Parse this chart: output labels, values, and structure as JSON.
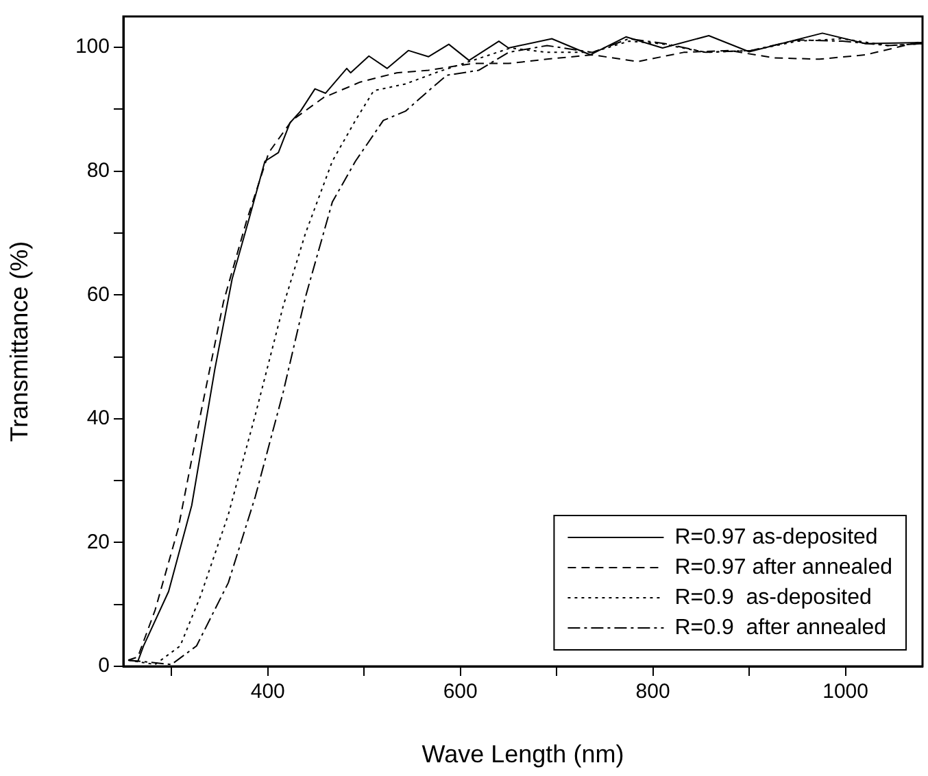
{
  "chart_data": {
    "type": "line",
    "xlabel": "Wave Length (nm)",
    "ylabel": "Transmittance (%)",
    "xlim": [
      250,
      1080
    ],
    "ylim": [
      0,
      105
    ],
    "xticks": [
      {
        "value": 300,
        "label": null
      },
      400,
      {
        "value": 500,
        "label": null
      },
      600,
      {
        "value": 700,
        "label": null
      },
      800,
      {
        "value": 900,
        "label": null
      },
      1000
    ],
    "yticks": [
      0,
      {
        "value": 10,
        "label": null
      },
      20,
      {
        "value": 30,
        "label": null
      },
      40,
      {
        "value": 50,
        "label": null
      },
      60,
      {
        "value": 70,
        "label": null
      },
      80,
      {
        "value": 90,
        "label": null
      },
      100
    ],
    "grid": false,
    "legend": "bottom right",
    "marker": "none",
    "series": [
      {
        "name": "R=0.97 as-deposited",
        "color": "#000000",
        "line_style": "solid",
        "x": [
          255,
          265,
          271,
          297,
          321,
          345,
          363,
          380,
          397,
          411,
          423,
          434,
          449,
          460,
          482,
          486,
          505,
          524,
          546,
          567,
          588,
          609,
          640,
          650,
          695,
          735,
          772,
          810,
          858,
          900,
          976,
          1021,
          1080
        ],
        "values": [
          1,
          0.8,
          3.3,
          12.1,
          26,
          48,
          62.6,
          72,
          81.6,
          83,
          87.8,
          89.7,
          93.3,
          92.6,
          96.6,
          95.9,
          98.6,
          96.6,
          99.5,
          98.5,
          100.5,
          97.9,
          101,
          99.9,
          101.4,
          98.8,
          101.7,
          99.9,
          101.9,
          99.3,
          102.3,
          100.6,
          100.8
        ]
      },
      {
        "name": "R=0.97 after annealed",
        "color": "#000000",
        "line_style": "dashed",
        "x": [
          255,
          265,
          283,
          307,
          330,
          354,
          378,
          401,
          425,
          458,
          496,
          534,
          567,
          595,
          614,
          650,
          690,
          737,
          784,
          832,
          879,
          926,
          973,
          1021,
          1080
        ],
        "values": [
          1,
          1.5,
          9.1,
          22.3,
          40.6,
          58.9,
          72,
          83,
          88.2,
          91.9,
          94.4,
          95.9,
          96.3,
          97,
          97.4,
          97.4,
          98.1,
          98.8,
          97.7,
          99.2,
          99.5,
          98.3,
          98.1,
          98.8,
          101
        ]
      },
      {
        "name": "R=0.9  as-deposited",
        "color": "#000000",
        "line_style": "dotted",
        "x": [
          255,
          283,
          309,
          330,
          359,
          387,
          416,
          439,
          467,
          491,
          510,
          543,
          576,
          609,
          652,
          690,
          737,
          775,
          808,
          855,
          902,
          950,
          997,
          1044,
          1080
        ],
        "values": [
          1,
          0.3,
          3.3,
          11.3,
          24.5,
          40.6,
          58.2,
          69.9,
          81.6,
          88.2,
          93,
          94.1,
          96,
          97.7,
          99.9,
          99.2,
          99.2,
          101,
          100.6,
          99.2,
          99.5,
          101,
          101.4,
          100.3,
          100.6
        ]
      },
      {
        "name": "R=0.9  after annealed",
        "color": "#000000",
        "line_style": "dashdot",
        "x": [
          255,
          300,
          326,
          359,
          387,
          416,
          439,
          467,
          491,
          520,
          543,
          567,
          586,
          619,
          650,
          690,
          737,
          775,
          813,
          855,
          902,
          950,
          997,
          1044,
          1080
        ],
        "values": [
          1,
          0.3,
          3.3,
          13.5,
          27.4,
          44.3,
          59.6,
          75,
          81.6,
          88.2,
          89.7,
          93,
          95.5,
          96.3,
          99.2,
          100.3,
          99.2,
          101.4,
          100.6,
          99.2,
          99.5,
          101.2,
          101,
          100.3,
          100.6
        ]
      }
    ]
  }
}
